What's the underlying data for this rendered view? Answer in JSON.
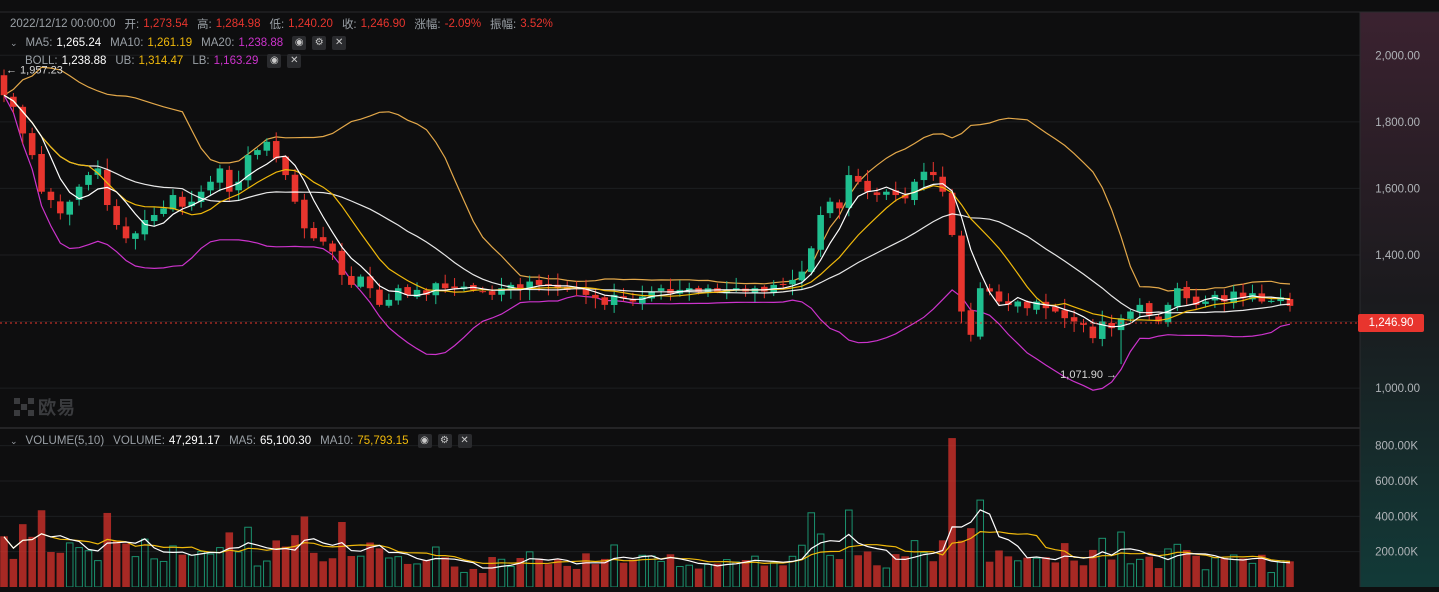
{
  "colors": {
    "up": "#1fbf8f",
    "down": "#e8352e",
    "ma5": "#ffffff",
    "ma10": "#f0b90b",
    "ma20": "#ffffff",
    "boll_ub": "#e3a84a",
    "boll_lb": "#cc33cc",
    "grid": "#1d1e20",
    "axis_text": "#b0b4b8"
  },
  "ohlc_bar": {
    "date": "2022/12/12 00:00:00",
    "open_label": "开:",
    "open": "1,273.54",
    "high_label": "高:",
    "high": "1,284.98",
    "low_label": "低:",
    "low": "1,240.20",
    "close_label": "收:",
    "close": "1,246.90",
    "change_label": "涨幅:",
    "change": "-2.09%",
    "amplitude_label": "振幅:",
    "amplitude": "3.52%"
  },
  "ma_legend": {
    "ma5_label": "MA5:",
    "ma5": "1,265.24",
    "ma10_label": "MA10:",
    "ma10": "1,261.19",
    "ma20_label": "MA20:",
    "ma20": "1,238.88"
  },
  "boll_legend": {
    "boll_label": "BOLL:",
    "boll": "1,238.88",
    "ub_label": "UB:",
    "ub": "1,314.47",
    "lb_label": "LB:",
    "lb": "1,163.29"
  },
  "volume_legend": {
    "title": "VOLUME(5,10)",
    "volume_label": "VOLUME:",
    "volume": "47,291.17",
    "ma5_label": "MA5:",
    "ma5": "65,100.30",
    "ma10_label": "MA10:",
    "ma10": "75,793.15"
  },
  "watermark": "欧易",
  "current_price_tag": "1,246.90",
  "chart_data": [
    {
      "type": "candlestick",
      "ylim": [
        880,
        2130
      ],
      "yticks": [
        "2,000.00",
        "1,800.00",
        "1,600.00",
        "1,400.00",
        "1,200.00",
        "1,000.00"
      ],
      "ytick_values": [
        2000,
        1800,
        1600,
        1400,
        1200,
        1000
      ],
      "annotations": [
        {
          "text": "← 1,957.23",
          "index": 0,
          "value": 1957.23,
          "side": "right"
        },
        {
          "text": "1,071.90 →",
          "index": 119,
          "value": 1071.9,
          "side": "left"
        }
      ],
      "current_price": 1246.9,
      "closes": [
        1880,
        1845,
        1765,
        1700,
        1590,
        1565,
        1525,
        1560,
        1605,
        1640,
        1660,
        1550,
        1490,
        1450,
        1465,
        1505,
        1520,
        1540,
        1580,
        1545,
        1560,
        1590,
        1620,
        1660,
        1590,
        1620,
        1700,
        1715,
        1740,
        1690,
        1640,
        1560,
        1480,
        1450,
        1440,
        1410,
        1340,
        1310,
        1335,
        1300,
        1250,
        1265,
        1300,
        1280,
        1295,
        1280,
        1315,
        1300,
        1300,
        1305,
        1295,
        1290,
        1280,
        1300,
        1310,
        1295,
        1320,
        1310,
        1310,
        1300,
        1295,
        1300,
        1280,
        1270,
        1250,
        1280,
        1270,
        1260,
        1275,
        1290,
        1300,
        1285,
        1295,
        1300,
        1290,
        1300,
        1290,
        1295,
        1300,
        1290,
        1300,
        1290,
        1310,
        1310,
        1325,
        1350,
        1420,
        1520,
        1560,
        1540,
        1640,
        1620,
        1590,
        1580,
        1590,
        1580,
        1570,
        1620,
        1650,
        1640,
        1590,
        1460,
        1230,
        1160,
        1300,
        1290,
        1260,
        1250,
        1260,
        1240,
        1260,
        1240,
        1230,
        1210,
        1200,
        1190,
        1150,
        1200,
        1180,
        1210,
        1230,
        1250,
        1220,
        1200,
        1250,
        1300,
        1270,
        1250,
        1260,
        1280,
        1260,
        1290,
        1270,
        1285,
        1260,
        1262,
        1273,
        1247
      ],
      "volume_ylim": [
        0,
        900000
      ],
      "volume_yticks": [
        "800.00K",
        "600.00K",
        "400.00K",
        "200.00K"
      ],
      "volume_ytick_values": [
        800000,
        600000,
        400000,
        200000
      ]
    }
  ]
}
